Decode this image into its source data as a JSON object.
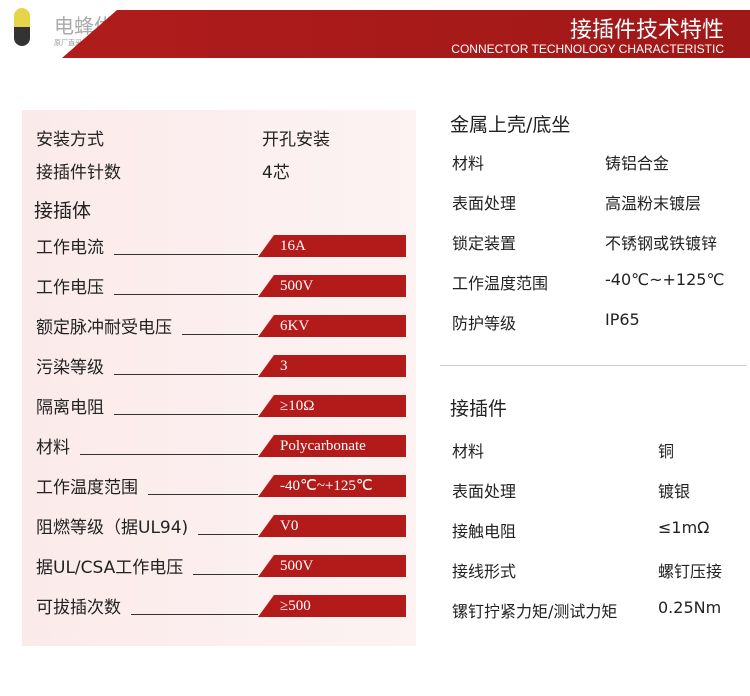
{
  "logo": {
    "name": "电蜂优选",
    "slogan": "原厂直采电子元器件平台"
  },
  "header": {
    "title": "接插件技术特性",
    "subtitle": "CONNECTOR TECHNOLOGY CHARACTERISTIC"
  },
  "left": {
    "top": [
      {
        "label": "安装方式",
        "value": "开孔安装"
      },
      {
        "label": "接插件针数",
        "value": "4芯"
      }
    ],
    "section": "接插体",
    "rows": [
      {
        "label": "工作电流",
        "value": "16A"
      },
      {
        "label": "工作电压",
        "value": "500V"
      },
      {
        "label": "额定脉冲耐受电压",
        "value": "6KV"
      },
      {
        "label": "污染等级",
        "value": "3"
      },
      {
        "label": "隔离电阻",
        "value": "≥10Ω"
      },
      {
        "label": "材料",
        "value": "Polycarbonate"
      },
      {
        "label": "工作温度范围",
        "value": "-40℃~+125℃"
      },
      {
        "label": "阻燃等级（据UL94)",
        "value": "V0"
      },
      {
        "label": "据UL/CSA工作电压",
        "value": "500V"
      },
      {
        "label": "可拔插次数",
        "value": "≥500"
      }
    ]
  },
  "right": {
    "housing": {
      "title": "金属上壳/底坐",
      "rows": [
        {
          "label": "材料",
          "value": "铸铝合金"
        },
        {
          "label": "表面处理",
          "value": "高温粉末镀层"
        },
        {
          "label": "锁定装置",
          "value": "不锈钢或铁镀锌"
        },
        {
          "label": "工作温度范围",
          "value": "-40℃~+125℃"
        },
        {
          "label": "防护等级",
          "value": "IP65"
        }
      ]
    },
    "contacts": {
      "title": "接插件",
      "rows": [
        {
          "label": "材料",
          "value": "铜"
        },
        {
          "label": "表面处理",
          "value": "镀银"
        },
        {
          "label": "接触电阻",
          "value": "≤1mΩ"
        },
        {
          "label": "接线形式",
          "value": "螺钉压接"
        },
        {
          "label": "镙钉拧紧力矩/测试力矩",
          "value": "0.25Nm"
        }
      ]
    }
  },
  "colors": {
    "accent": "#b31b1b",
    "panel": "#fbeaea"
  }
}
